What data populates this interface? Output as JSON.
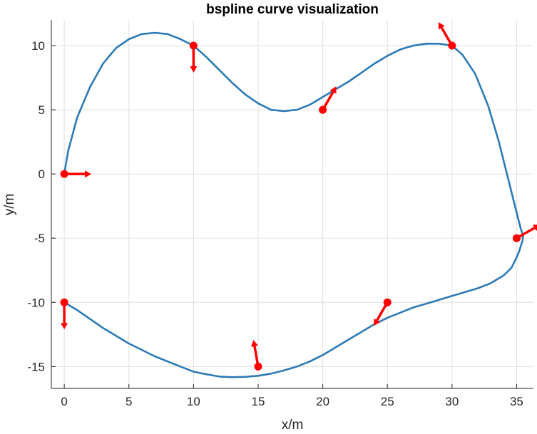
{
  "chart_data": {
    "type": "line",
    "title": "bspline curve visualization",
    "xlabel": "x/m",
    "ylabel": "y/m",
    "xlim": [
      -1,
      36.3
    ],
    "ylim": [
      -16.7,
      12
    ],
    "xticks": [
      0,
      5,
      10,
      15,
      20,
      25,
      30,
      35
    ],
    "yticks": [
      10,
      5,
      0,
      -5,
      -10,
      -15
    ],
    "grid": true,
    "colors": {
      "curve": "#2c7bb6",
      "points": "#ff0000",
      "grid": "#e0e0e0",
      "axis": "#262626"
    },
    "curve": {
      "x": [
        0,
        0.3,
        1,
        2,
        3,
        4,
        5,
        6,
        7,
        8,
        9,
        10,
        11,
        12,
        13,
        14,
        15,
        16,
        17,
        18,
        19,
        20,
        21,
        22,
        23,
        24,
        25,
        26,
        27,
        28,
        29,
        30,
        30.8,
        31.8,
        32.8,
        33.6,
        34.3,
        34.9,
        35.3,
        35.5,
        35.45,
        35.2,
        35,
        34.6,
        34,
        33,
        32,
        31,
        30,
        29,
        28,
        27,
        26,
        25,
        24,
        23,
        22,
        21,
        20,
        19,
        18,
        17,
        16,
        15,
        14,
        13,
        12,
        11,
        10,
        9,
        8,
        7,
        6,
        5,
        4,
        3,
        2,
        1,
        0
      ],
      "y": [
        0,
        1.8,
        4.4,
        6.8,
        8.6,
        9.8,
        10.5,
        10.9,
        11,
        10.9,
        10.5,
        10,
        9.1,
        8.1,
        7.1,
        6.2,
        5.5,
        5.0,
        4.9,
        5.0,
        5.4,
        6.0,
        6.6,
        7.2,
        7.9,
        8.6,
        9.2,
        9.7,
        10,
        10.15,
        10.15,
        10,
        9.3,
        7.8,
        5.3,
        2.6,
        -0.2,
        -2.6,
        -4.2,
        -4.8,
        -5.2,
        -6,
        -6.5,
        -7.3,
        -7.9,
        -8.5,
        -8.9,
        -9.2,
        -9.5,
        -9.8,
        -10.1,
        -10.4,
        -10.8,
        -11.2,
        -11.7,
        -12.3,
        -12.9,
        -13.5,
        -14.1,
        -14.6,
        -15.0,
        -15.3,
        -15.55,
        -15.72,
        -15.8,
        -15.83,
        -15.78,
        -15.6,
        -15.4,
        -15.0,
        -14.6,
        -14.2,
        -13.7,
        -13.2,
        -12.6,
        -12.0,
        -11.3,
        -10.6,
        -10
      ]
    },
    "points": [
      {
        "x": 0,
        "y": 0,
        "heading_deg": 0
      },
      {
        "x": 10,
        "y": 10,
        "heading_deg": -90
      },
      {
        "x": 20,
        "y": 5,
        "heading_deg": 60
      },
      {
        "x": 30,
        "y": 10,
        "heading_deg": 120
      },
      {
        "x": 35,
        "y": -5,
        "heading_deg": 30
      },
      {
        "x": 25,
        "y": -10,
        "heading_deg": -120
      },
      {
        "x": 15,
        "y": -15,
        "heading_deg": 100
      },
      {
        "x": 0,
        "y": -10,
        "heading_deg": -90
      }
    ]
  }
}
